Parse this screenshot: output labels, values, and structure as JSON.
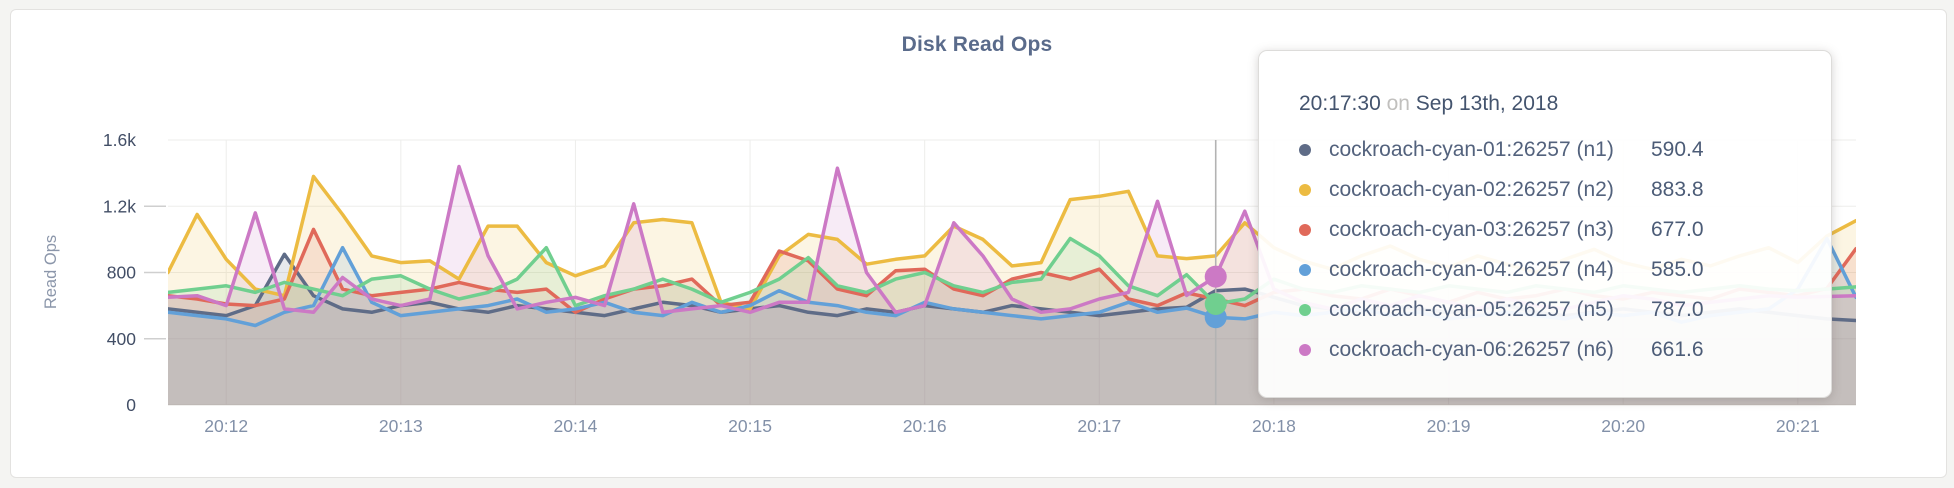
{
  "chart_data": {
    "type": "area",
    "title": "Disk Read Ops",
    "ylabel": "Read Ops",
    "ylim": [
      0,
      1600
    ],
    "grid": true,
    "legend_position": "none",
    "sample_step_seconds": 10,
    "t_range_seconds": [
      0,
      580
    ],
    "t_start_label": "20:11:40",
    "y_ticks": [
      {
        "v": 0,
        "label": "0"
      },
      {
        "v": 400,
        "label": "400"
      },
      {
        "v": 800,
        "label": "800"
      },
      {
        "v": 1200,
        "label": "1.2k"
      },
      {
        "v": 1600,
        "label": "1.6k"
      }
    ],
    "x_ticks": [
      {
        "t": 20,
        "label": "20:12"
      },
      {
        "t": 80,
        "label": "20:13"
      },
      {
        "t": 140,
        "label": "20:14"
      },
      {
        "t": 200,
        "label": "20:15"
      },
      {
        "t": 260,
        "label": "20:16"
      },
      {
        "t": 320,
        "label": "20:17"
      },
      {
        "t": 380,
        "label": "20:18"
      },
      {
        "t": 440,
        "label": "20:19"
      },
      {
        "t": 500,
        "label": "20:20"
      },
      {
        "t": 560,
        "label": "20:21"
      }
    ],
    "series": [
      {
        "id": "n1",
        "name": "cockroach-cyan-01:26257 (n1)",
        "color": "#5f6c87",
        "values": [
          580,
          560,
          540,
          600,
          910,
          660,
          580,
          560,
          600,
          620,
          580,
          560,
          600,
          580,
          560,
          540,
          580,
          620,
          600,
          560,
          580,
          600,
          560,
          540,
          580,
          560,
          600,
          580,
          560,
          600,
          580,
          560,
          540,
          560,
          580,
          590,
          690,
          700,
          650,
          600,
          580,
          560,
          600,
          580,
          560,
          580,
          600,
          560,
          540,
          560,
          580,
          560,
          540,
          560,
          580,
          560,
          540,
          520,
          510
        ]
      },
      {
        "id": "n2",
        "name": "cockroach-cyan-02:26257 (n2)",
        "color": "#ecbb42",
        "values": [
          800,
          1150,
          880,
          700,
          660,
          1380,
          1150,
          900,
          860,
          870,
          760,
          1080,
          1080,
          860,
          780,
          840,
          1100,
          1120,
          1100,
          620,
          580,
          900,
          1030,
          1000,
          850,
          880,
          900,
          1080,
          1000,
          840,
          860,
          1240,
          1260,
          1290,
          900,
          884,
          900,
          1100,
          950,
          870,
          820,
          900,
          960,
          880,
          830,
          900,
          850,
          800,
          880,
          940,
          860,
          820,
          880,
          840,
          900,
          950,
          860,
          1020,
          1113
        ]
      },
      {
        "id": "n3",
        "name": "cockroach-cyan-03:26257 (n3)",
        "color": "#e0695a",
        "values": [
          660,
          640,
          610,
          600,
          640,
          1060,
          700,
          660,
          680,
          700,
          740,
          700,
          680,
          700,
          560,
          640,
          700,
          720,
          760,
          600,
          620,
          930,
          870,
          700,
          660,
          810,
          820,
          700,
          660,
          760,
          800,
          760,
          820,
          640,
          600,
          677,
          640,
          600,
          680,
          700,
          660,
          640,
          700,
          660,
          620,
          680,
          640,
          660,
          700,
          660,
          640,
          680,
          660,
          640,
          700,
          680,
          660,
          704,
          944
        ]
      },
      {
        "id": "n4",
        "name": "cockroach-cyan-04:26257 (n4)",
        "color": "#62a0d8",
        "values": [
          560,
          540,
          520,
          480,
          560,
          600,
          950,
          620,
          540,
          560,
          580,
          600,
          640,
          560,
          580,
          620,
          560,
          540,
          620,
          560,
          600,
          690,
          620,
          600,
          560,
          540,
          620,
          580,
          560,
          540,
          520,
          540,
          560,
          620,
          560,
          585,
          530,
          520,
          560,
          540,
          560,
          580,
          540,
          560,
          520,
          540,
          560,
          540,
          520,
          560,
          540,
          560,
          500,
          540,
          560,
          580,
          700,
          1005,
          650
        ]
      },
      {
        "id": "n5",
        "name": "cockroach-cyan-05:26257 (n5)",
        "color": "#70cf8f",
        "values": [
          680,
          700,
          720,
          680,
          740,
          700,
          660,
          760,
          780,
          700,
          640,
          680,
          760,
          950,
          600,
          660,
          700,
          760,
          700,
          620,
          680,
          760,
          890,
          720,
          680,
          760,
          800,
          720,
          680,
          740,
          760,
          1005,
          900,
          720,
          660,
          787,
          610,
          640,
          760,
          700,
          680,
          720,
          700,
          680,
          720,
          700,
          680,
          720,
          700,
          680,
          720,
          700,
          680,
          700,
          720,
          700,
          690,
          700,
          713
        ]
      },
      {
        "id": "n6",
        "name": "cockroach-cyan-06:26257 (n6)",
        "color": "#cc79c5",
        "values": [
          650,
          660,
          600,
          1160,
          580,
          560,
          770,
          640,
          600,
          640,
          1440,
          900,
          580,
          620,
          650,
          600,
          1215,
          560,
          580,
          600,
          560,
          620,
          620,
          1430,
          800,
          560,
          600,
          1100,
          900,
          640,
          560,
          580,
          640,
          680,
          1230,
          662,
          775,
          1170,
          700,
          620,
          580,
          640,
          600,
          660,
          620,
          580,
          640,
          600,
          580,
          620,
          660,
          640,
          600,
          620,
          640,
          660,
          650,
          655,
          660
        ]
      }
    ],
    "crosshair": {
      "time_label": "20:17:30",
      "t": 360,
      "dot_series": [
        "n4",
        "n5",
        "n6"
      ]
    }
  },
  "tooltip": {
    "time": "20:17:30",
    "conj": "on",
    "date": "Sep 13th, 2018",
    "rows": [
      {
        "label": "cockroach-cyan-01:26257 (n1)",
        "value": "590.4",
        "color": "#5f6c87"
      },
      {
        "label": "cockroach-cyan-02:26257 (n2)",
        "value": "883.8",
        "color": "#ecbb42"
      },
      {
        "label": "cockroach-cyan-03:26257 (n3)",
        "value": "677.0",
        "color": "#e0695a"
      },
      {
        "label": "cockroach-cyan-04:26257 (n4)",
        "value": "585.0",
        "color": "#62a0d8"
      },
      {
        "label": "cockroach-cyan-05:26257 (n5)",
        "value": "787.0",
        "color": "#70cf8f"
      },
      {
        "label": "cockroach-cyan-06:26257 (n6)",
        "value": "661.6",
        "color": "#cc79c5"
      }
    ]
  },
  "colors": {
    "title": "#5a6b8b",
    "y_tick_label": "#424e66",
    "x_tick_label": "#8290a8",
    "axis_title": "#8b96aa",
    "gridline": "#ededeb",
    "baseline": "#e3e0dc",
    "crosshair": "#b3b3b3",
    "card_border": "#e3e2e0",
    "page_bg": "#f4f4f2"
  }
}
